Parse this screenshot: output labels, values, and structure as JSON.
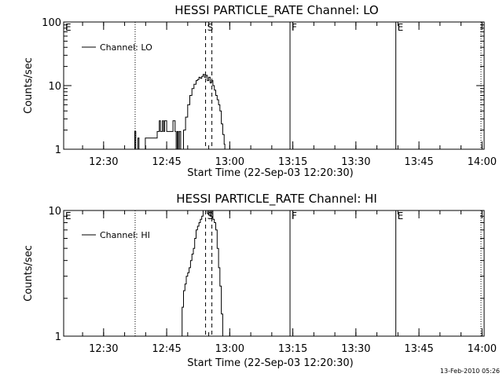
{
  "chart_data": [
    {
      "type": "line",
      "title": "HESSI PARTICLE_RATE Channel: LO",
      "xlabel": "Start Time (22-Sep-03 12:20:30)",
      "ylabel": "Counts/sec",
      "yscale": "log",
      "ylim": [
        1,
        100
      ],
      "xlim": [
        "12:20:30",
        "14:00:30"
      ],
      "x_ticks": [
        "12:30",
        "12:45",
        "13:00",
        "13:15",
        "13:30",
        "13:45",
        "14:00"
      ],
      "y_ticks": [
        "1",
        "10",
        "100"
      ],
      "legend": {
        "position": "top-left",
        "entries": [
          "Channel: LO"
        ]
      },
      "markers": [
        {
          "time": "12:20:30",
          "label": "E",
          "style": "none"
        },
        {
          "time": "12:37:30",
          "label": "",
          "style": "dotted"
        },
        {
          "time": "12:54:15",
          "label": "S",
          "style": "dashed"
        },
        {
          "time": "12:55:45",
          "label": "",
          "style": "dashed"
        },
        {
          "time": "13:14:20",
          "label": "F",
          "style": "solid"
        },
        {
          "time": "13:39:30",
          "label": "E",
          "style": "solid"
        },
        {
          "time": "13:59:45",
          "label": "",
          "style": "dotted"
        }
      ],
      "series": [
        {
          "name": "Channel: LO",
          "x": [
            "12:37:10",
            "12:37:25",
            "12:37:40",
            "12:37:55",
            "12:38:10",
            "12:38:25",
            "12:39:40",
            "12:39:55",
            "12:42:30",
            "12:42:45",
            "12:43:00",
            "12:43:15",
            "12:43:30",
            "12:43:45",
            "12:44:00",
            "12:44:15",
            "12:44:30",
            "12:45:00",
            "12:45:30",
            "12:46:00",
            "12:46:30",
            "12:47:00",
            "12:47:15",
            "12:47:30",
            "12:47:45",
            "12:48:00",
            "12:48:20",
            "12:48:40",
            "12:49:00",
            "12:49:30",
            "12:50:00",
            "12:50:30",
            "12:51:00",
            "12:51:30",
            "12:52:00",
            "12:52:20",
            "12:52:40",
            "12:53:00",
            "12:53:20",
            "12:53:40",
            "12:54:00",
            "12:54:20",
            "12:54:40",
            "12:55:00",
            "12:55:20",
            "12:55:40",
            "12:56:00",
            "12:56:20",
            "12:56:40",
            "12:57:00",
            "12:57:20",
            "12:57:40",
            "12:58:00",
            "12:58:20",
            "12:58:40",
            "12:58:50"
          ],
          "y": [
            1.0,
            1.9,
            1.0,
            1.0,
            1.5,
            1.0,
            1.0,
            1.5,
            1.5,
            1.9,
            1.9,
            2.8,
            1.9,
            1.9,
            2.8,
            1.9,
            2.8,
            1.9,
            1.9,
            1.9,
            2.8,
            1.9,
            1.0,
            1.9,
            1.0,
            1.9,
            1.0,
            1.0,
            2.0,
            3.2,
            5.0,
            7.0,
            9.0,
            10.5,
            12.0,
            12.5,
            13.5,
            13.0,
            14.0,
            15.0,
            13.5,
            14.5,
            12.0,
            13.5,
            11.0,
            12.0,
            10.0,
            8.5,
            7.0,
            6.0,
            5.0,
            4.0,
            2.5,
            1.7,
            1.2,
            1.0
          ]
        }
      ]
    },
    {
      "type": "line",
      "title": "HESSI PARTICLE_RATE Channel: HI",
      "xlabel": "Start Time (22-Sep-03 12:20:30)",
      "ylabel": "Counts/sec",
      "yscale": "log",
      "ylim": [
        1,
        10
      ],
      "xlim": [
        "12:20:30",
        "14:00:30"
      ],
      "x_ticks": [
        "12:30",
        "12:45",
        "13:00",
        "13:15",
        "13:30",
        "13:45",
        "14:00"
      ],
      "y_ticks": [
        "1",
        "10"
      ],
      "legend": {
        "position": "top-left",
        "entries": [
          "Channel: HI"
        ]
      },
      "markers": [
        {
          "time": "12:20:30",
          "label": "E",
          "style": "none"
        },
        {
          "time": "12:37:30",
          "label": "",
          "style": "dotted"
        },
        {
          "time": "12:54:15",
          "label": "S",
          "style": "dashed"
        },
        {
          "time": "12:55:45",
          "label": "",
          "style": "dashed"
        },
        {
          "time": "13:14:20",
          "label": "F",
          "style": "solid"
        },
        {
          "time": "13:39:30",
          "label": "E",
          "style": "solid"
        },
        {
          "time": "13:59:45",
          "label": "",
          "style": "dotted"
        }
      ],
      "series": [
        {
          "name": "Channel: HI",
          "x": [
            "12:48:20",
            "12:48:40",
            "12:49:00",
            "12:49:20",
            "12:49:40",
            "12:50:00",
            "12:50:20",
            "12:50:40",
            "12:51:00",
            "12:51:20",
            "12:51:40",
            "12:52:00",
            "12:52:20",
            "12:52:40",
            "12:53:00",
            "12:53:20",
            "12:53:40",
            "12:54:00",
            "12:54:20",
            "12:54:40",
            "12:55:00",
            "12:55:20",
            "12:55:40",
            "12:56:00",
            "12:56:20",
            "12:56:40",
            "12:57:00",
            "12:57:20",
            "12:57:40",
            "12:58:00",
            "12:58:20"
          ],
          "y": [
            1.0,
            1.7,
            2.3,
            2.6,
            3.0,
            3.2,
            3.5,
            4.0,
            4.5,
            5.0,
            6.0,
            7.0,
            7.5,
            8.0,
            8.5,
            9.0,
            10.0,
            10.5,
            10.0,
            9.5,
            10.5,
            9.0,
            10.0,
            8.5,
            8.0,
            7.0,
            5.0,
            3.5,
            2.5,
            1.5,
            1.0
          ]
        }
      ]
    }
  ],
  "timestamp": "13-Feb-2010 05:26"
}
